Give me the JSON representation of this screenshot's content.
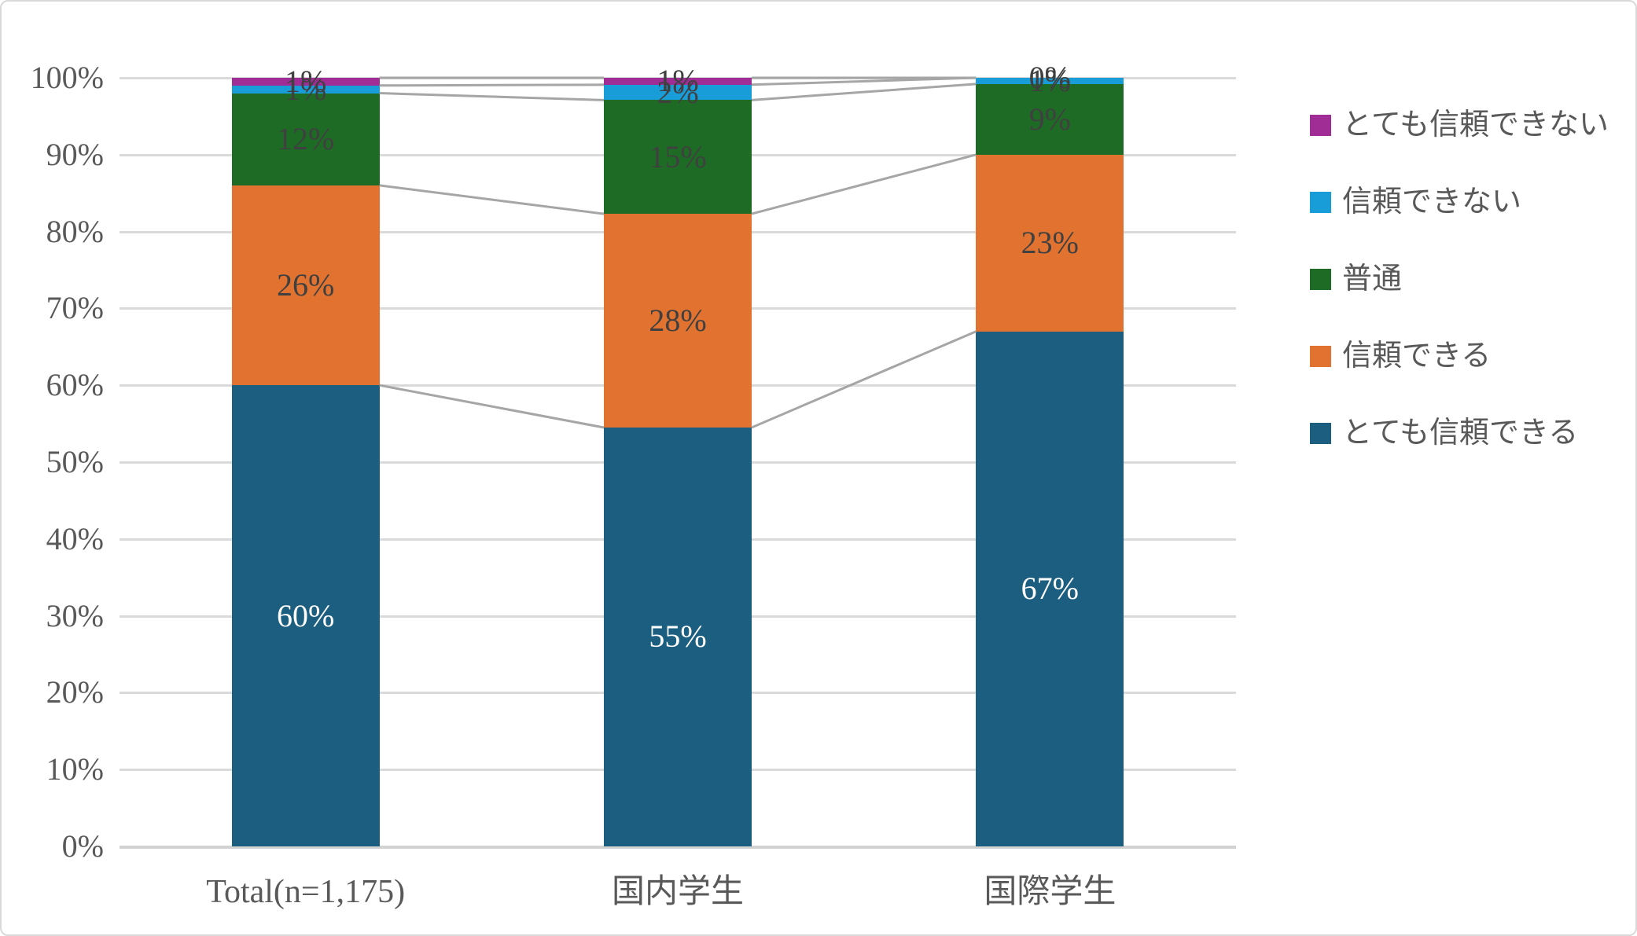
{
  "chart_data": {
    "type": "bar",
    "subtype": "stacked-100-percent-column",
    "title": "",
    "xlabel": "",
    "ylabel": "",
    "ylim": [
      0,
      100
    ],
    "grid": true,
    "legend_position": "right",
    "categories": [
      "Total(n=1,175)",
      "国内学生",
      "国際学生"
    ],
    "y_ticks": [
      "0%",
      "10%",
      "20%",
      "30%",
      "40%",
      "50%",
      "60%",
      "70%",
      "80%",
      "90%",
      "100%"
    ],
    "series": [
      {
        "key": "very-trustworthy",
        "name": "とても信頼できる",
        "color": "#1b5e80",
        "label_color": "#ffffff",
        "values": [
          60,
          54.5,
          67
        ],
        "labels": [
          "60%",
          "55%",
          "67%"
        ]
      },
      {
        "key": "trustworthy",
        "name": "信頼できる",
        "color": "#e2722f",
        "label_color": "#404040",
        "values": [
          26,
          27.8,
          23
        ],
        "labels": [
          "26%",
          "28%",
          "23%"
        ]
      },
      {
        "key": "neutral",
        "name": "普通",
        "color": "#1e6b25",
        "label_color": "#404040",
        "values": [
          12,
          14.8,
          9.2
        ],
        "labels": [
          "12%",
          "15%",
          "9%"
        ]
      },
      {
        "key": "untrustworthy",
        "name": "信頼できない",
        "color": "#189dd8",
        "label_color": "#404040",
        "values": [
          1,
          2,
          0.8
        ],
        "labels": [
          "1%",
          "2%",
          "1%"
        ]
      },
      {
        "key": "very-untrustworthy",
        "name": "とても信頼できない",
        "color": "#a02c96",
        "label_color": "#404040",
        "values": [
          1,
          0.9,
          0
        ],
        "labels": [
          "1%",
          "1%",
          "0%"
        ]
      }
    ],
    "legend_items_top_to_bottom": [
      {
        "key": "very-untrustworthy",
        "label": "とても信頼できない",
        "color": "#a02c96"
      },
      {
        "key": "untrustworthy",
        "label": "信頼できない",
        "color": "#189dd8"
      },
      {
        "key": "neutral",
        "label": "普通",
        "color": "#1e6b25"
      },
      {
        "key": "trustworthy",
        "label": "信頼できる",
        "color": "#e2722f"
      },
      {
        "key": "very-trustworthy",
        "label": "とても信頼できる",
        "color": "#1b5e80"
      }
    ],
    "connector_line_color": "#a6a6a6",
    "gridline_color": "#dadada"
  }
}
